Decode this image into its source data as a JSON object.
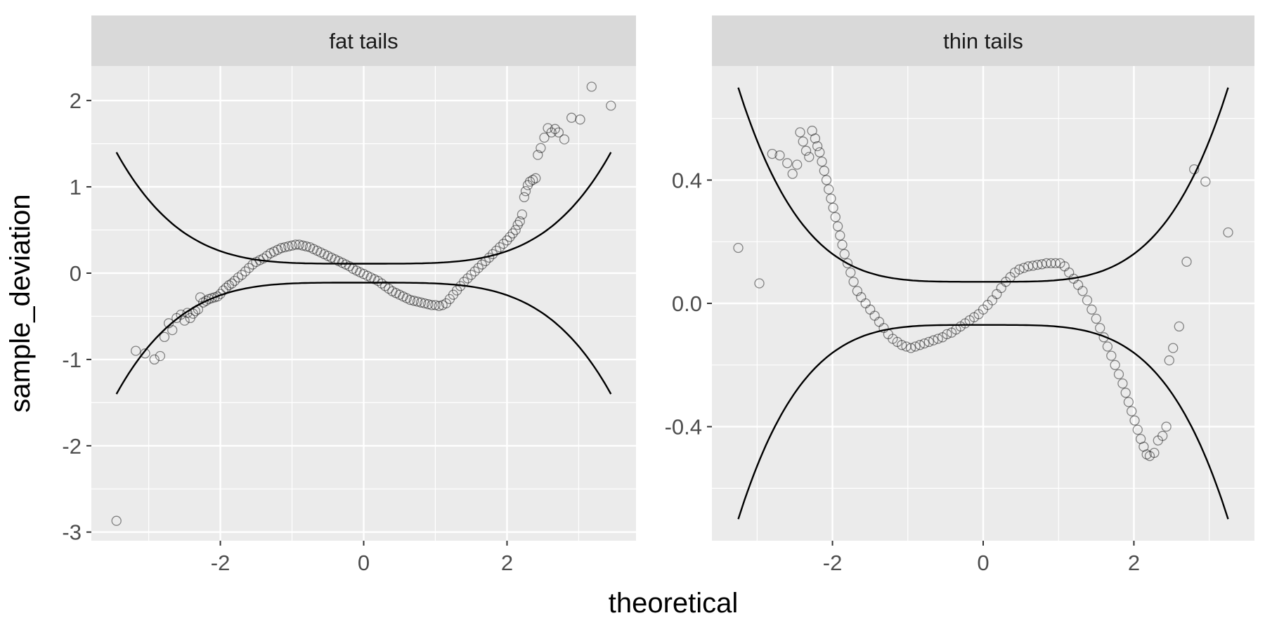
{
  "chart_data": {
    "type": "scatter",
    "xlabel": "theoretical",
    "ylabel": "sample_deviation",
    "colors": {
      "panel_bg": "#ebebeb",
      "strip_bg": "#d9d9d9",
      "grid": "#ffffff",
      "points": "#000000",
      "curves": "#000000"
    },
    "grid": true,
    "legend": "none",
    "panels": [
      {
        "strip_label": "fat tails",
        "xlim": [
          -3.8,
          3.8
        ],
        "ylim": [
          -3.1,
          2.4
        ],
        "xticks": [
          -2,
          0,
          2
        ],
        "xtick_labels": [
          "-2",
          "0",
          "2"
        ],
        "yticks": [
          -3,
          -2,
          -1,
          0,
          1,
          2
        ],
        "ytick_labels": [
          "-3",
          "-2",
          "-1",
          "0",
          "1",
          "2"
        ],
        "band": {
          "x_range": [
            -3.45,
            3.45
          ],
          "center_halfwidth": 0.11,
          "edge_halfwidth": 1.4
        },
        "points": [
          [
            -3.45,
            -2.87
          ],
          [
            -3.18,
            -0.9
          ],
          [
            -3.05,
            -0.93
          ],
          [
            -2.92,
            -1.0
          ],
          [
            -2.84,
            -0.96
          ],
          [
            -2.78,
            -0.74
          ],
          [
            -2.72,
            -0.58
          ],
          [
            -2.67,
            -0.66
          ],
          [
            -2.61,
            -0.52
          ],
          [
            -2.55,
            -0.48
          ],
          [
            -2.5,
            -0.55
          ],
          [
            -2.46,
            -0.46
          ],
          [
            -2.42,
            -0.52
          ],
          [
            -2.38,
            -0.47
          ],
          [
            -2.35,
            -0.44
          ],
          [
            -2.31,
            -0.42
          ],
          [
            -2.28,
            -0.28
          ],
          [
            -2.24,
            -0.34
          ],
          [
            -2.2,
            -0.32
          ],
          [
            -2.16,
            -0.3
          ],
          [
            -2.12,
            -0.29
          ],
          [
            -2.08,
            -0.28
          ],
          [
            -2.04,
            -0.27
          ],
          [
            -2.0,
            -0.24
          ],
          [
            -1.96,
            -0.2
          ],
          [
            -1.92,
            -0.17
          ],
          [
            -1.88,
            -0.14
          ],
          [
            -1.84,
            -0.12
          ],
          [
            -1.8,
            -0.09
          ],
          [
            -1.75,
            -0.05
          ],
          [
            -1.7,
            -0.02
          ],
          [
            -1.65,
            0.02
          ],
          [
            -1.6,
            0.06
          ],
          [
            -1.55,
            0.1
          ],
          [
            -1.5,
            0.13
          ],
          [
            -1.45,
            0.15
          ],
          [
            -1.4,
            0.17
          ],
          [
            -1.35,
            0.2
          ],
          [
            -1.3,
            0.23
          ],
          [
            -1.25,
            0.25
          ],
          [
            -1.2,
            0.27
          ],
          [
            -1.15,
            0.29
          ],
          [
            -1.1,
            0.3
          ],
          [
            -1.05,
            0.31
          ],
          [
            -1.0,
            0.32
          ],
          [
            -0.95,
            0.33
          ],
          [
            -0.9,
            0.33
          ],
          [
            -0.85,
            0.32
          ],
          [
            -0.8,
            0.31
          ],
          [
            -0.75,
            0.3
          ],
          [
            -0.7,
            0.28
          ],
          [
            -0.65,
            0.26
          ],
          [
            -0.6,
            0.24
          ],
          [
            -0.55,
            0.22
          ],
          [
            -0.5,
            0.2
          ],
          [
            -0.45,
            0.18
          ],
          [
            -0.4,
            0.16
          ],
          [
            -0.35,
            0.14
          ],
          [
            -0.3,
            0.12
          ],
          [
            -0.25,
            0.1
          ],
          [
            -0.2,
            0.08
          ],
          [
            -0.15,
            0.05
          ],
          [
            -0.1,
            0.03
          ],
          [
            -0.05,
            0.01
          ],
          [
            0.0,
            -0.01
          ],
          [
            0.05,
            -0.03
          ],
          [
            0.1,
            -0.05
          ],
          [
            0.15,
            -0.07
          ],
          [
            0.2,
            -0.09
          ],
          [
            0.25,
            -0.12
          ],
          [
            0.3,
            -0.15
          ],
          [
            0.35,
            -0.18
          ],
          [
            0.4,
            -0.21
          ],
          [
            0.45,
            -0.23
          ],
          [
            0.5,
            -0.25
          ],
          [
            0.55,
            -0.27
          ],
          [
            0.6,
            -0.29
          ],
          [
            0.65,
            -0.31
          ],
          [
            0.7,
            -0.32
          ],
          [
            0.75,
            -0.33
          ],
          [
            0.8,
            -0.34
          ],
          [
            0.85,
            -0.35
          ],
          [
            0.9,
            -0.36
          ],
          [
            0.95,
            -0.37
          ],
          [
            1.0,
            -0.37
          ],
          [
            1.05,
            -0.38
          ],
          [
            1.1,
            -0.37
          ],
          [
            1.15,
            -0.35
          ],
          [
            1.2,
            -0.3
          ],
          [
            1.25,
            -0.25
          ],
          [
            1.3,
            -0.2
          ],
          [
            1.35,
            -0.15
          ],
          [
            1.4,
            -0.1
          ],
          [
            1.45,
            -0.06
          ],
          [
            1.5,
            -0.02
          ],
          [
            1.55,
            0.02
          ],
          [
            1.6,
            0.06
          ],
          [
            1.65,
            0.1
          ],
          [
            1.7,
            0.14
          ],
          [
            1.75,
            0.18
          ],
          [
            1.8,
            0.22
          ],
          [
            1.85,
            0.26
          ],
          [
            1.9,
            0.3
          ],
          [
            1.95,
            0.34
          ],
          [
            2.0,
            0.38
          ],
          [
            2.04,
            0.42
          ],
          [
            2.08,
            0.46
          ],
          [
            2.12,
            0.5
          ],
          [
            2.15,
            0.56
          ],
          [
            2.18,
            0.6
          ],
          [
            2.21,
            0.68
          ],
          [
            2.24,
            0.88
          ],
          [
            2.26,
            0.95
          ],
          [
            2.29,
            1.02
          ],
          [
            2.32,
            1.06
          ],
          [
            2.36,
            1.08
          ],
          [
            2.4,
            1.1
          ],
          [
            2.43,
            1.37
          ],
          [
            2.47,
            1.45
          ],
          [
            2.52,
            1.57
          ],
          [
            2.57,
            1.68
          ],
          [
            2.62,
            1.63
          ],
          [
            2.67,
            1.67
          ],
          [
            2.72,
            1.63
          ],
          [
            2.8,
            1.55
          ],
          [
            2.9,
            1.8
          ],
          [
            3.02,
            1.78
          ],
          [
            3.18,
            2.16
          ],
          [
            3.45,
            1.94
          ]
        ]
      },
      {
        "strip_label": "thin tails",
        "xlim": [
          -3.6,
          3.6
        ],
        "ylim": [
          -0.77,
          0.77
        ],
        "xticks": [
          -2,
          0,
          2
        ],
        "xtick_labels": [
          "-2",
          "0",
          "2"
        ],
        "yticks": [
          -0.4,
          0.0,
          0.4
        ],
        "ytick_labels": [
          "-0.4",
          "0.0",
          "0.4"
        ],
        "band": {
          "x_range": [
            -3.25,
            3.25
          ],
          "center_halfwidth": 0.07,
          "edge_halfwidth": 0.7
        },
        "points": [
          [
            -3.25,
            0.18
          ],
          [
            -2.97,
            0.065
          ],
          [
            -2.8,
            0.485
          ],
          [
            -2.7,
            0.48
          ],
          [
            -2.6,
            0.455
          ],
          [
            -2.53,
            0.42
          ],
          [
            -2.47,
            0.45
          ],
          [
            -2.43,
            0.555
          ],
          [
            -2.39,
            0.525
          ],
          [
            -2.35,
            0.495
          ],
          [
            -2.31,
            0.475
          ],
          [
            -2.27,
            0.56
          ],
          [
            -2.23,
            0.535
          ],
          [
            -2.2,
            0.51
          ],
          [
            -2.17,
            0.49
          ],
          [
            -2.14,
            0.46
          ],
          [
            -2.11,
            0.43
          ],
          [
            -2.08,
            0.4
          ],
          [
            -2.05,
            0.37
          ],
          [
            -2.02,
            0.34
          ],
          [
            -1.99,
            0.31
          ],
          [
            -1.96,
            0.28
          ],
          [
            -1.93,
            0.25
          ],
          [
            -1.9,
            0.22
          ],
          [
            -1.87,
            0.19
          ],
          [
            -1.84,
            0.16
          ],
          [
            -1.8,
            0.13
          ],
          [
            -1.76,
            0.1
          ],
          [
            -1.72,
            0.07
          ],
          [
            -1.67,
            0.04
          ],
          [
            -1.62,
            0.02
          ],
          [
            -1.56,
            0.0
          ],
          [
            -1.5,
            -0.02
          ],
          [
            -1.44,
            -0.04
          ],
          [
            -1.38,
            -0.06
          ],
          [
            -1.32,
            -0.08
          ],
          [
            -1.26,
            -0.1
          ],
          [
            -1.2,
            -0.115
          ],
          [
            -1.14,
            -0.125
          ],
          [
            -1.08,
            -0.135
          ],
          [
            -1.02,
            -0.14
          ],
          [
            -0.96,
            -0.145
          ],
          [
            -0.9,
            -0.14
          ],
          [
            -0.84,
            -0.135
          ],
          [
            -0.78,
            -0.13
          ],
          [
            -0.72,
            -0.125
          ],
          [
            -0.66,
            -0.12
          ],
          [
            -0.6,
            -0.115
          ],
          [
            -0.54,
            -0.11
          ],
          [
            -0.48,
            -0.1
          ],
          [
            -0.42,
            -0.095
          ],
          [
            -0.36,
            -0.085
          ],
          [
            -0.3,
            -0.075
          ],
          [
            -0.24,
            -0.065
          ],
          [
            -0.18,
            -0.055
          ],
          [
            -0.12,
            -0.045
          ],
          [
            -0.06,
            -0.035
          ],
          [
            0.0,
            -0.02
          ],
          [
            0.06,
            -0.005
          ],
          [
            0.12,
            0.01
          ],
          [
            0.18,
            0.03
          ],
          [
            0.24,
            0.05
          ],
          [
            0.3,
            0.07
          ],
          [
            0.36,
            0.085
          ],
          [
            0.42,
            0.1
          ],
          [
            0.48,
            0.11
          ],
          [
            0.54,
            0.115
          ],
          [
            0.6,
            0.12
          ],
          [
            0.66,
            0.122
          ],
          [
            0.72,
            0.125
          ],
          [
            0.78,
            0.127
          ],
          [
            0.84,
            0.13
          ],
          [
            0.9,
            0.13
          ],
          [
            0.96,
            0.13
          ],
          [
            1.02,
            0.13
          ],
          [
            1.08,
            0.12
          ],
          [
            1.14,
            0.1
          ],
          [
            1.2,
            0.08
          ],
          [
            1.26,
            0.06
          ],
          [
            1.32,
            0.04
          ],
          [
            1.38,
            0.01
          ],
          [
            1.44,
            -0.02
          ],
          [
            1.5,
            -0.05
          ],
          [
            1.55,
            -0.08
          ],
          [
            1.6,
            -0.11
          ],
          [
            1.65,
            -0.14
          ],
          [
            1.7,
            -0.17
          ],
          [
            1.75,
            -0.2
          ],
          [
            1.8,
            -0.23
          ],
          [
            1.85,
            -0.26
          ],
          [
            1.89,
            -0.29
          ],
          [
            1.93,
            -0.32
          ],
          [
            1.97,
            -0.35
          ],
          [
            2.01,
            -0.38
          ],
          [
            2.05,
            -0.41
          ],
          [
            2.09,
            -0.44
          ],
          [
            2.13,
            -0.465
          ],
          [
            2.17,
            -0.49
          ],
          [
            2.21,
            -0.495
          ],
          [
            2.27,
            -0.485
          ],
          [
            2.32,
            -0.445
          ],
          [
            2.38,
            -0.43
          ],
          [
            2.43,
            -0.4
          ],
          [
            2.47,
            -0.185
          ],
          [
            2.52,
            -0.145
          ],
          [
            2.6,
            -0.075
          ],
          [
            2.7,
            0.135
          ],
          [
            2.8,
            0.435
          ],
          [
            2.95,
            0.395
          ],
          [
            3.25,
            0.23
          ]
        ]
      }
    ]
  }
}
